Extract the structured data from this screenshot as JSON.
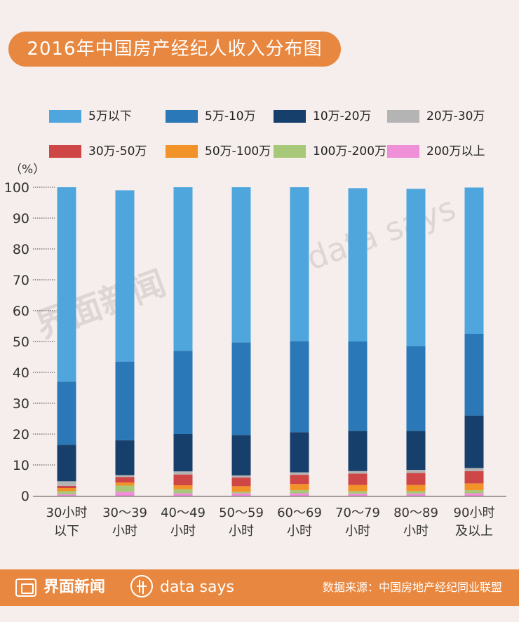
{
  "title": "2016年中国房产经纪人收入分布图",
  "legend": [
    {
      "label": "5万以下",
      "color": "#4fa6dd"
    },
    {
      "label": "5万-10万",
      "color": "#2a78b7"
    },
    {
      "label": "10万-20万",
      "color": "#163f6b"
    },
    {
      "label": "20万-30万",
      "color": "#b4b4b4"
    },
    {
      "label": "30万-50万",
      "color": "#cf4646"
    },
    {
      "label": "50万-100万",
      "color": "#f29329"
    },
    {
      "label": "100万-200万",
      "color": "#a7c879"
    },
    {
      "label": "200万以上",
      "color": "#ee8fd8"
    }
  ],
  "chart_data": {
    "type": "bar",
    "stacked": true,
    "ylabel": "（%）",
    "ylim": [
      0,
      100
    ],
    "yticks": [
      0,
      10,
      20,
      30,
      40,
      50,
      60,
      70,
      80,
      90,
      100
    ],
    "categories": [
      [
        "30小时",
        "以下"
      ],
      [
        "30～39",
        "小时"
      ],
      [
        "40～49",
        "小时"
      ],
      [
        "50～59",
        "小时"
      ],
      [
        "60～69",
        "小时"
      ],
      [
        "70～79",
        "小时"
      ],
      [
        "80～89",
        "小时"
      ],
      [
        "90小时",
        "及以上"
      ]
    ],
    "series": [
      {
        "name": "200万以上",
        "values": [
          0.5,
          1.3,
          0.8,
          0.8,
          0.8,
          0.7,
          0.7,
          0.8
        ]
      },
      {
        "name": "100万-200万",
        "values": [
          1.0,
          2.0,
          1.3,
          0.5,
          1.0,
          0.8,
          0.8,
          1.0
        ]
      },
      {
        "name": "50万-100万",
        "values": [
          1.0,
          1.0,
          1.3,
          1.8,
          2.0,
          2.0,
          2.0,
          2.2
        ]
      },
      {
        "name": "30万-50万",
        "values": [
          0.7,
          1.8,
          3.5,
          2.8,
          3.0,
          3.7,
          3.9,
          4.0
        ]
      },
      {
        "name": "20万-30万",
        "values": [
          1.5,
          0.6,
          1.0,
          0.7,
          0.8,
          0.8,
          1.0,
          1.0
        ]
      },
      {
        "name": "10万-20万",
        "values": [
          11.8,
          11.3,
          12.1,
          13.1,
          13.0,
          13.0,
          12.6,
          17.0
        ]
      },
      {
        "name": "5万-10万",
        "values": [
          20.5,
          25.5,
          27.0,
          30.0,
          29.5,
          29.0,
          27.5,
          26.5
        ]
      },
      {
        "name": "5万以下",
        "values": [
          63.0,
          55.5,
          53.0,
          50.3,
          49.9,
          49.7,
          51.0,
          47.4
        ]
      }
    ]
  },
  "watermarks": {
    "left": "界面新闻",
    "right": "data says"
  },
  "footer": {
    "brand": "界面新闻",
    "datasays": "data says",
    "source": "数据来源：中国房地产经纪同业联盟"
  }
}
